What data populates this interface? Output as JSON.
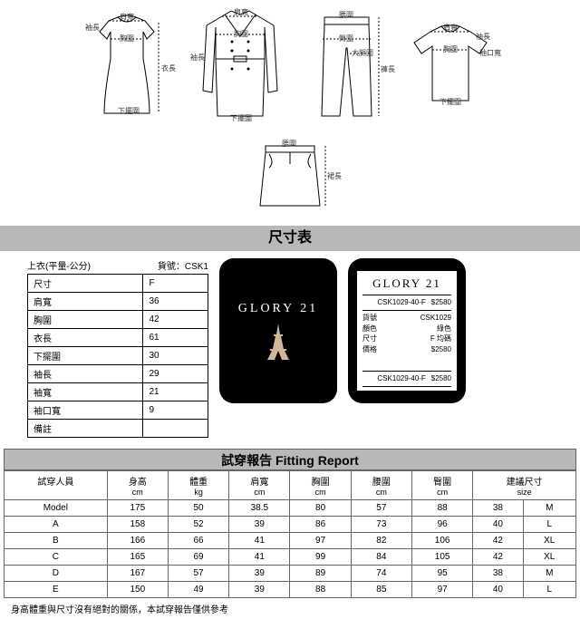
{
  "diagram_labels": {
    "shoulder": "肩寬",
    "chest": "胸圍",
    "length": "衣長",
    "hem": "下擺圍",
    "sleeve": "袖長",
    "cuff": "袖口寬",
    "waist": "腰圍",
    "hip": "臀圍",
    "thigh": "大腿圍",
    "pant_len": "褲長",
    "skirt_len": "裙長"
  },
  "size_section_title": "尺寸表",
  "size_caption_left": "上衣(平量-公分)",
  "size_caption_right": "貨號：CSK1",
  "size_table": {
    "header": [
      "尺寸",
      "F"
    ],
    "rows": [
      [
        "肩寬",
        "36"
      ],
      [
        "胸圍",
        "42"
      ],
      [
        "衣長",
        "61"
      ],
      [
        "下擺圍",
        "30"
      ],
      [
        "袖長",
        "29"
      ],
      [
        "袖寬",
        "21"
      ],
      [
        "袖口寬",
        "9"
      ],
      [
        "備註",
        ""
      ]
    ]
  },
  "brand_logo": "GLORY 21",
  "tag": {
    "sku_top": "CSK1029-40-F",
    "price_top": "$2580",
    "fields": [
      [
        "貨號",
        "CSK1029"
      ],
      [
        "顏色",
        "綠色"
      ],
      [
        "尺寸",
        "F 均碼"
      ],
      [
        "價格",
        "$2580"
      ]
    ],
    "sku_bot": "CSK1029-40-F",
    "price_bot": "$2580"
  },
  "fitting_title": "試穿報告 Fitting Report",
  "fitting_header": [
    {
      "t": "試穿人員",
      "u": ""
    },
    {
      "t": "身高",
      "u": "cm"
    },
    {
      "t": "體重",
      "u": "kg"
    },
    {
      "t": "肩寬",
      "u": "cm"
    },
    {
      "t": "胸圍",
      "u": "cm"
    },
    {
      "t": "腰圍",
      "u": "cm"
    },
    {
      "t": "臀圍",
      "u": "cm"
    },
    {
      "t": "建議尺寸",
      "u": "size",
      "span": 2
    }
  ],
  "fitting_rows": [
    [
      "Model",
      "175",
      "50",
      "38.5",
      "80",
      "57",
      "88",
      "38",
      "M"
    ],
    [
      "A",
      "158",
      "52",
      "39",
      "86",
      "73",
      "96",
      "40",
      "L"
    ],
    [
      "B",
      "166",
      "66",
      "41",
      "97",
      "82",
      "106",
      "42",
      "XL"
    ],
    [
      "C",
      "165",
      "69",
      "41",
      "99",
      "84",
      "105",
      "42",
      "XL"
    ],
    [
      "D",
      "167",
      "57",
      "39",
      "89",
      "74",
      "95",
      "38",
      "M"
    ],
    [
      "E",
      "150",
      "49",
      "39",
      "88",
      "85",
      "97",
      "40",
      "L"
    ]
  ],
  "disclaimer": "身高體重與尺寸沒有絕對的關係，本試穿報告僅供參考"
}
